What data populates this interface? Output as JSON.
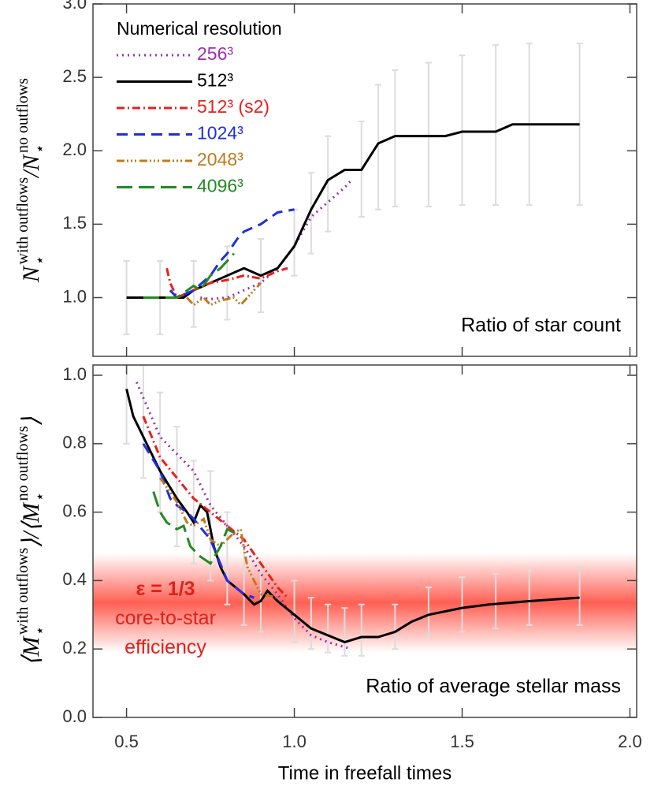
{
  "chart_data": [
    {
      "type": "line",
      "ylabel": [
        {
          "text": "N",
          "shift": "base"
        },
        {
          "text": "⋆",
          "shift": "sub"
        },
        {
          "text": "with outflows",
          "shift": "sup"
        },
        {
          "text": "/",
          "shift": "base"
        },
        {
          "text": "N",
          "shift": "base"
        },
        {
          "text": "⋆",
          "shift": "sub"
        },
        {
          "text": "no outflows",
          "shift": "sup"
        }
      ],
      "legend_title": "Numerical resolution",
      "annotation": "Ratio of star count",
      "xlim": [
        0.4,
        2.02
      ],
      "xticks": [
        0.5,
        1,
        1.5,
        2
      ],
      "ylim": [
        0.6,
        3.0
      ],
      "yticks": [
        {
          "value": 1.0,
          "label": "1.0"
        },
        {
          "value": 1.5,
          "label": "1.5"
        },
        {
          "value": 2.0,
          "label": "2.0"
        },
        {
          "value": 2.5,
          "label": "2.5"
        },
        {
          "value": 3.0,
          "label": "3.0"
        }
      ],
      "error_band": {
        "color": "#dcdcdc",
        "x": [
          0.5,
          0.6,
          0.7,
          0.8,
          0.9,
          1.0,
          1.05,
          1.1,
          1.2,
          1.25,
          1.3,
          1.4,
          1.5,
          1.6,
          1.7,
          1.85
        ],
        "low": [
          0.75,
          0.75,
          0.8,
          0.85,
          0.9,
          1.15,
          1.3,
          1.45,
          1.55,
          1.6,
          1.62,
          1.62,
          1.63,
          1.63,
          1.63,
          1.63
        ],
        "high": [
          1.25,
          1.25,
          1.25,
          1.35,
          1.4,
          1.6,
          1.85,
          2.1,
          2.2,
          2.45,
          2.55,
          2.6,
          2.65,
          2.72,
          2.73,
          2.73
        ]
      },
      "series": [
        {
          "name": "256³",
          "color": "#9b2fae",
          "dash": "2,5",
          "x": [
            0.72,
            0.75,
            0.8,
            0.85,
            0.9,
            0.95,
            1.0,
            1.05,
            1.1,
            1.15,
            1.17
          ],
          "values": [
            1.0,
            0.99,
            1.0,
            1.05,
            1.1,
            1.2,
            1.35,
            1.55,
            1.65,
            1.75,
            1.8
          ]
        },
        {
          "name": "512³",
          "color": "#000000",
          "dash": "",
          "x": [
            0.5,
            0.6,
            0.67,
            0.7,
            0.75,
            0.8,
            0.85,
            0.9,
            0.95,
            1.0,
            1.05,
            1.1,
            1.15,
            1.2,
            1.25,
            1.3,
            1.45,
            1.5,
            1.6,
            1.65,
            1.85
          ],
          "values": [
            1.0,
            1.0,
            1.0,
            1.05,
            1.1,
            1.15,
            1.2,
            1.15,
            1.2,
            1.35,
            1.6,
            1.8,
            1.87,
            1.87,
            2.05,
            2.1,
            2.1,
            2.13,
            2.13,
            2.18,
            2.18
          ]
        },
        {
          "name": "512³ (s2)",
          "color": "#e8201c",
          "dash": "10,4,2,4",
          "x": [
            0.62,
            0.63,
            0.65,
            0.7,
            0.75,
            0.8,
            0.85,
            0.9,
            0.95,
            0.98
          ],
          "values": [
            1.2,
            1.1,
            1.0,
            1.05,
            1.1,
            1.12,
            1.15,
            1.13,
            1.18,
            1.2
          ]
        },
        {
          "name": "1024³",
          "color": "#1f2ee0",
          "dash": "14,8",
          "x": [
            0.63,
            0.65,
            0.7,
            0.75,
            0.78,
            0.8,
            0.83,
            0.85,
            0.9,
            0.95,
            1.0
          ],
          "values": [
            1.05,
            1.0,
            1.05,
            1.15,
            1.25,
            1.3,
            1.4,
            1.45,
            1.5,
            1.58,
            1.6
          ]
        },
        {
          "name": "2048³",
          "color": "#c07a1e",
          "dash": "10,3,2,3,2,3,2,4",
          "x": [
            0.68,
            0.7,
            0.73,
            0.75,
            0.78,
            0.82,
            0.84,
            0.86,
            0.88,
            0.9
          ],
          "values": [
            1.0,
            0.95,
            1.0,
            0.95,
            0.98,
            1.0,
            0.95,
            1.0,
            1.05,
            1.1
          ]
        },
        {
          "name": "4096³",
          "color": "#228b22",
          "dash": "20,8",
          "x": [
            0.55,
            0.6,
            0.65,
            0.7,
            0.72,
            0.75,
            0.78,
            0.8,
            0.82
          ],
          "values": [
            1.0,
            1.0,
            1.0,
            1.08,
            1.05,
            1.15,
            1.2,
            1.25,
            1.3
          ]
        }
      ]
    },
    {
      "type": "line",
      "ylabel": [
        {
          "text": "⟨M",
          "shift": "base"
        },
        {
          "text": "⋆",
          "shift": "sub"
        },
        {
          "text": "with outflows",
          "shift": "sup"
        },
        {
          "text": "⟩/⟨M",
          "shift": "base"
        },
        {
          "text": "⋆",
          "shift": "sub"
        },
        {
          "text": "no outflows",
          "shift": "sup"
        },
        {
          "text": "⟩",
          "shift": "base"
        }
      ],
      "xlabel": "Time in freefall times",
      "annotation": "Ratio of average stellar mass",
      "band": {
        "center": 0.3333,
        "lim": [
          0.19,
          0.48
        ],
        "color": "#ff2a1a"
      },
      "band_labels": [
        "ε = 1/3",
        "core-to-star",
        "efficiency"
      ],
      "xlim": [
        0.4,
        2.02
      ],
      "xticks": [
        {
          "value": 0.5,
          "label": "0.5"
        },
        {
          "value": 1.0,
          "label": "1.0"
        },
        {
          "value": 1.5,
          "label": "1.5"
        },
        {
          "value": 2.0,
          "label": "2.0"
        }
      ],
      "ylim": [
        0,
        1.03
      ],
      "yticks": [
        {
          "value": 0,
          "label": "0.0"
        },
        {
          "value": 0.2,
          "label": "0.2"
        },
        {
          "value": 0.4,
          "label": "0.4"
        },
        {
          "value": 0.6,
          "label": "0.6"
        },
        {
          "value": 0.8,
          "label": "0.8"
        },
        {
          "value": 1.0,
          "label": "1.0"
        }
      ],
      "error_band": {
        "color": "#dcdcdc",
        "x": [
          0.5,
          0.55,
          0.6,
          0.65,
          0.7,
          0.75,
          0.8,
          0.85,
          0.9,
          1.0,
          1.05,
          1.1,
          1.15,
          1.2,
          1.3,
          1.4,
          1.5,
          1.6,
          1.7,
          1.85
        ],
        "low": [
          0.8,
          0.7,
          0.6,
          0.5,
          0.45,
          0.4,
          0.33,
          0.27,
          0.25,
          0.22,
          0.2,
          0.19,
          0.18,
          0.18,
          0.2,
          0.24,
          0.25,
          0.26,
          0.27,
          0.27
        ],
        "high": [
          1.03,
          1.03,
          0.95,
          0.85,
          0.75,
          0.72,
          0.6,
          0.5,
          0.45,
          0.4,
          0.35,
          0.33,
          0.32,
          0.33,
          0.33,
          0.38,
          0.41,
          0.42,
          0.43,
          0.44
        ]
      },
      "series": [
        {
          "color": "#9b2fae",
          "dash": "2,5",
          "x": [
            0.53,
            0.6,
            0.65,
            0.7,
            0.75,
            0.8,
            0.85,
            0.9,
            0.95,
            1.0,
            1.05,
            1.1,
            1.17
          ],
          "values": [
            0.98,
            0.82,
            0.77,
            0.72,
            0.62,
            0.56,
            0.5,
            0.42,
            0.36,
            0.29,
            0.24,
            0.22,
            0.2
          ]
        },
        {
          "color": "#000000",
          "dash": "",
          "x": [
            0.5,
            0.52,
            0.55,
            0.6,
            0.65,
            0.68,
            0.7,
            0.72,
            0.74,
            0.76,
            0.78,
            0.8,
            0.85,
            0.88,
            0.9,
            0.92,
            0.95,
            1.0,
            1.05,
            1.1,
            1.15,
            1.2,
            1.25,
            1.3,
            1.35,
            1.4,
            1.5,
            1.58,
            1.7,
            1.85
          ],
          "values": [
            0.96,
            0.88,
            0.82,
            0.72,
            0.64,
            0.6,
            0.57,
            0.62,
            0.6,
            0.5,
            0.44,
            0.4,
            0.36,
            0.33,
            0.34,
            0.37,
            0.34,
            0.3,
            0.26,
            0.24,
            0.22,
            0.235,
            0.235,
            0.25,
            0.28,
            0.3,
            0.32,
            0.33,
            0.34,
            0.35
          ]
        },
        {
          "color": "#e8201c",
          "dash": "10,4,2,4",
          "x": [
            0.55,
            0.6,
            0.65,
            0.7,
            0.75,
            0.8,
            0.85,
            0.9,
            0.95,
            0.98
          ],
          "values": [
            0.88,
            0.76,
            0.7,
            0.64,
            0.6,
            0.56,
            0.52,
            0.45,
            0.38,
            0.35
          ]
        },
        {
          "color": "#1f2ee0",
          "dash": "14,8",
          "x": [
            0.55,
            0.6,
            0.63,
            0.65,
            0.68,
            0.7,
            0.75,
            0.8,
            0.85,
            0.88
          ],
          "values": [
            0.8,
            0.72,
            0.64,
            0.62,
            0.6,
            0.58,
            0.52,
            0.4,
            0.36,
            0.35
          ]
        },
        {
          "color": "#c07a1e",
          "dash": "10,3,2,3,2,3,2,4",
          "x": [
            0.6,
            0.65,
            0.68,
            0.7,
            0.73,
            0.75,
            0.78,
            0.82,
            0.84,
            0.86,
            0.9,
            0.95
          ],
          "values": [
            0.7,
            0.63,
            0.57,
            0.56,
            0.58,
            0.52,
            0.5,
            0.54,
            0.55,
            0.44,
            0.36,
            0.35
          ]
        },
        {
          "color": "#228b22",
          "dash": "20,8",
          "x": [
            0.58,
            0.6,
            0.62,
            0.65,
            0.67,
            0.69,
            0.72,
            0.75,
            0.78,
            0.8,
            0.82
          ],
          "values": [
            0.66,
            0.6,
            0.57,
            0.55,
            0.56,
            0.5,
            0.47,
            0.45,
            0.5,
            0.55,
            0.54
          ]
        }
      ]
    }
  ]
}
